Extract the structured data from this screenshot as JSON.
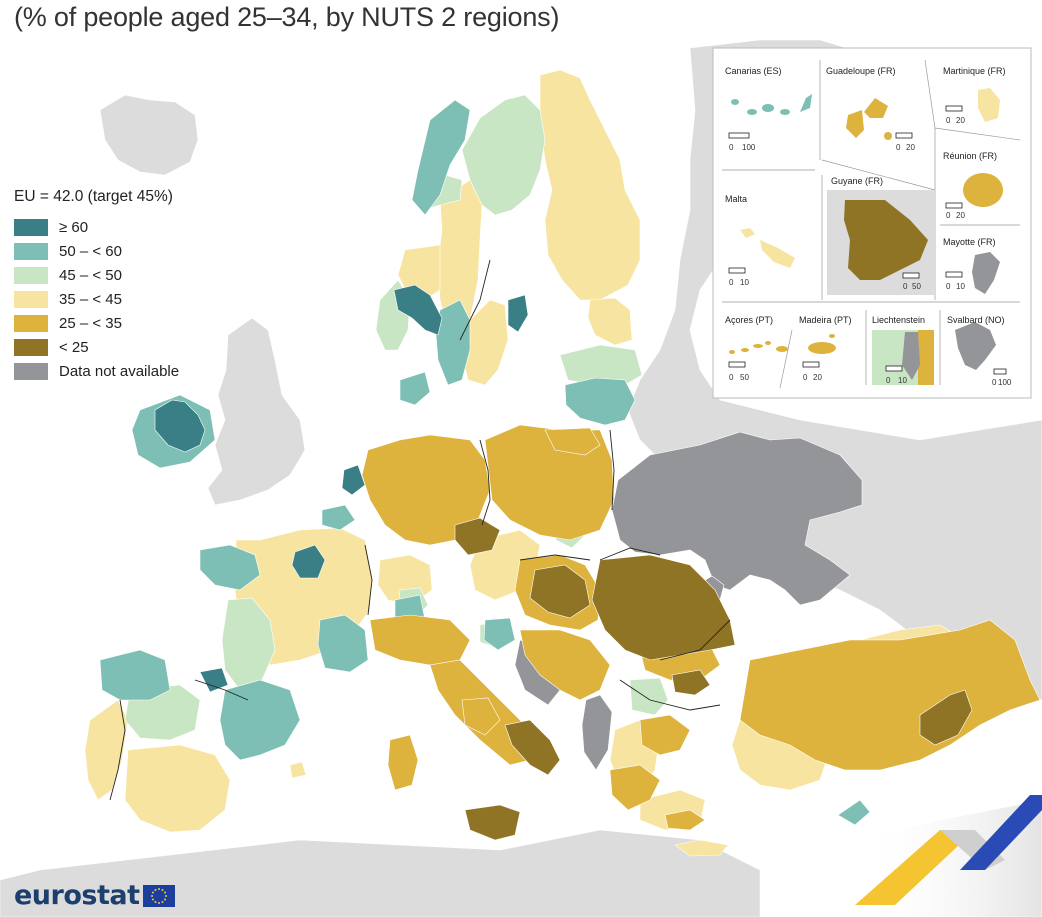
{
  "title": "(% of people aged 25–34, by NUTS 2 regions)",
  "legend": {
    "title": "EU = 42.0 (target 45%)",
    "items": [
      {
        "label": "≥ 60",
        "color": "#3a7f86",
        "class": "ge60"
      },
      {
        "label": "50 – < 60",
        "color": "#7dbfb4",
        "class": "50to60"
      },
      {
        "label": "45 – < 50",
        "color": "#c8e6c3",
        "class": "45to50"
      },
      {
        "label": "35 – < 45",
        "color": "#f8e4a1",
        "class": "35to45"
      },
      {
        "label": "25 – < 35",
        "color": "#ddb23d",
        "class": "25to35"
      },
      {
        "label": "< 25",
        "color": "#8f7425",
        "class": "lt25"
      },
      {
        "label": "Data not available",
        "color": "#939598",
        "class": "na"
      }
    ]
  },
  "insets": [
    {
      "name": "Canarias (ES)",
      "scale": [
        "0",
        "100"
      ]
    },
    {
      "name": "Guadeloupe (FR)",
      "scale": [
        "0",
        "20"
      ]
    },
    {
      "name": "Martinique (FR)",
      "scale": [
        "0",
        "20"
      ]
    },
    {
      "name": "Réunion (FR)",
      "scale": [
        "0",
        "20"
      ]
    },
    {
      "name": "Guyane (FR)",
      "scale": [
        "0",
        "50"
      ]
    },
    {
      "name": "Malta",
      "scale": [
        "0",
        "10"
      ]
    },
    {
      "name": "Mayotte (FR)",
      "scale": [
        "0",
        "10"
      ]
    },
    {
      "name": "Açores (PT)",
      "scale": [
        "0",
        "50"
      ]
    },
    {
      "name": "Madeira (PT)",
      "scale": [
        "0",
        "20"
      ]
    },
    {
      "name": "Liechtenstein",
      "scale": [
        "0",
        "10"
      ]
    },
    {
      "name": "Svalbard (NO)",
      "scale": [
        "0",
        "100"
      ]
    }
  ],
  "colors": {
    "sea": "#ffffff",
    "non_eu_land": "#dcdcdc",
    "brand_blue": "#1c3f6e",
    "brand_yellow": "#f5c431"
  },
  "logo": {
    "text": "eurostat"
  }
}
